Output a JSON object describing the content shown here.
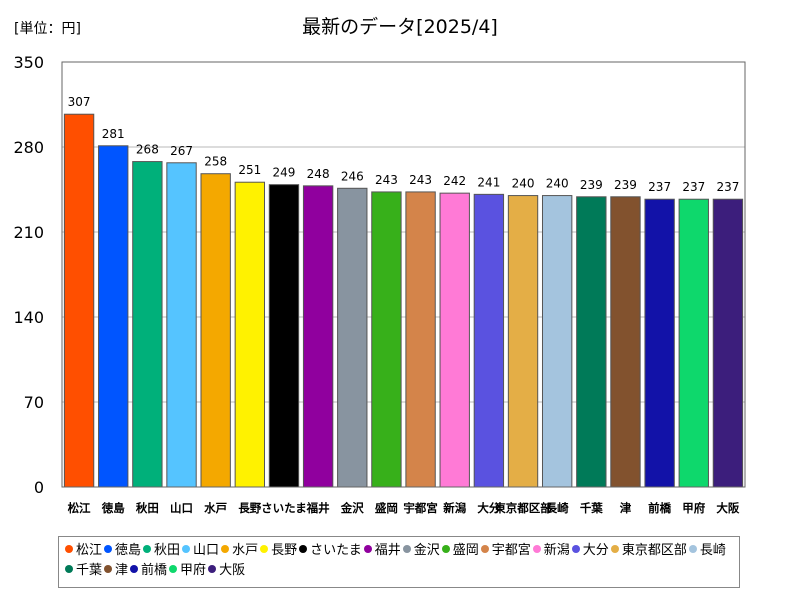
{
  "chart_data": {
    "type": "bar",
    "title": "最新のデータ[2025/4]",
    "unit_label": "[単位：円]",
    "ylim": [
      0,
      350
    ],
    "yticks": [
      0,
      70,
      140,
      210,
      280,
      350
    ],
    "grid": true,
    "legend_position": "bottom",
    "categories": [
      "松江",
      "徳島",
      "秋田",
      "山口",
      "水戸",
      "長野",
      "さいたま",
      "福井",
      "金沢",
      "盛岡",
      "宇都宮",
      "新潟",
      "大分",
      "東京都区部",
      "長崎",
      "千葉",
      "津",
      "前橋",
      "甲府",
      "大阪"
    ],
    "values": [
      307,
      281,
      268,
      267,
      258,
      251,
      249,
      248,
      246,
      243,
      243,
      242,
      241,
      240,
      240,
      239,
      239,
      237,
      237,
      237
    ],
    "colors": [
      "#ff4f00",
      "#0055ff",
      "#00b07a",
      "#55c4ff",
      "#f4a800",
      "#fff200",
      "#000000",
      "#90009e",
      "#8894a0",
      "#37b01a",
      "#d4844a",
      "#ff7ad6",
      "#5a52e0",
      "#e4ae46",
      "#a4c4de",
      "#007a58",
      "#82522e",
      "#1212a8",
      "#0ed86c",
      "#3c1e7c"
    ]
  }
}
